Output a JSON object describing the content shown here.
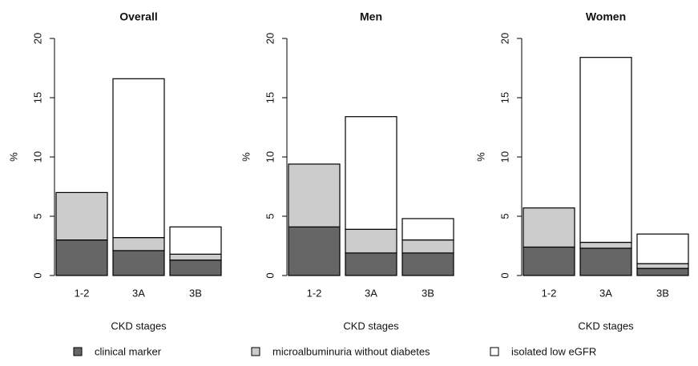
{
  "chart_data": [
    {
      "type": "bar",
      "stacked": true,
      "title": "Overall",
      "xlabel": "CKD stages",
      "ylabel": "%",
      "categories": [
        "1-2",
        "3A",
        "3B"
      ],
      "ylim": [
        0,
        20
      ],
      "yticks": [
        0,
        5,
        10,
        15,
        20
      ],
      "series": [
        {
          "name": "clinical marker",
          "color": "#666666",
          "values": [
            3.0,
            2.1,
            1.3
          ]
        },
        {
          "name": "microalbuminuria without diabetes",
          "color": "#cccccc",
          "values": [
            4.0,
            1.1,
            0.5
          ]
        },
        {
          "name": "isolated low eGFR",
          "color": "#ffffff",
          "values": [
            0,
            13.4,
            2.3
          ]
        }
      ]
    },
    {
      "type": "bar",
      "stacked": true,
      "title": "Men",
      "xlabel": "CKD stages",
      "ylabel": "%",
      "categories": [
        "1-2",
        "3A",
        "3B"
      ],
      "ylim": [
        0,
        20
      ],
      "yticks": [
        0,
        5,
        10,
        15,
        20
      ],
      "series": [
        {
          "color": "#666666",
          "values": [
            4.1,
            1.9,
            1.9
          ]
        },
        {
          "color": "#cccccc",
          "values": [
            5.3,
            2.0,
            1.1
          ]
        },
        {
          "color": "#ffffff",
          "values": [
            0,
            9.5,
            1.8
          ]
        }
      ]
    },
    {
      "type": "bar",
      "stacked": true,
      "title": "Women",
      "xlabel": "CKD stages",
      "ylabel": "%",
      "categories": [
        "1-2",
        "3A",
        "3B"
      ],
      "ylim": [
        0,
        20
      ],
      "yticks": [
        0,
        5,
        10,
        15,
        20
      ],
      "series": [
        {
          "color": "#666666",
          "values": [
            2.4,
            2.3,
            0.6
          ]
        },
        {
          "color": "#cccccc",
          "values": [
            3.3,
            0.5,
            0.4
          ]
        },
        {
          "color": "#ffffff",
          "values": [
            0,
            15.6,
            2.5
          ]
        }
      ]
    }
  ]
}
